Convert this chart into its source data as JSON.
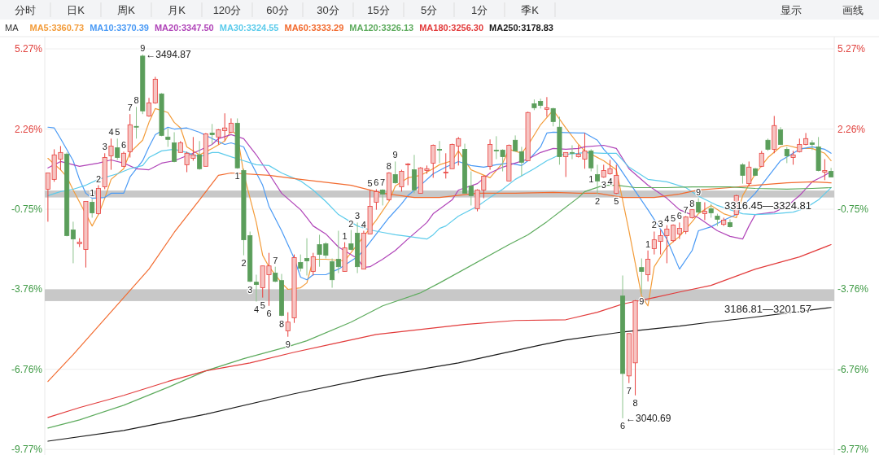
{
  "chart_data": {
    "type": "candlestick",
    "categories": [
      null,
      null,
      null,
      null,
      null,
      null,
      null,
      null,
      null,
      null,
      null,
      null,
      null,
      null,
      null,
      null,
      null,
      null,
      null,
      null,
      null,
      null,
      null,
      null,
      null,
      null,
      null,
      null,
      null,
      null,
      null,
      null,
      null,
      null,
      null,
      null,
      null,
      null,
      null,
      null,
      null,
      null,
      null,
      null,
      null,
      null,
      null,
      null,
      null,
      null,
      null,
      null,
      null,
      null,
      null,
      null,
      null,
      null,
      null,
      null,
      null,
      null,
      null,
      null,
      null,
      null,
      null,
      null,
      null,
      null,
      null,
      null,
      null,
      null,
      null,
      null,
      null,
      null,
      null,
      null,
      null,
      null,
      null,
      null,
      null,
      null,
      null,
      null,
      null,
      null,
      null,
      null,
      null,
      null,
      null,
      null,
      null,
      null,
      null,
      null,
      null,
      null,
      null,
      null,
      null,
      null,
      null,
      null,
      null,
      null,
      null,
      null,
      null,
      null,
      null,
      null,
      null,
      null,
      null,
      null,
      null,
      null,
      null,
      null,
      null
    ],
    "ohlc": [
      [
        0.0,
        0.61,
        -1.22,
        0.61
      ],
      [
        0.37,
        1.5,
        0.28,
        1.29
      ],
      [
        1.13,
        1.62,
        0.73,
        1.38
      ],
      [
        1.32,
        1.38,
        -1.77,
        -1.74
      ],
      [
        -1.53,
        -1.22,
        -2.78,
        -1.87
      ],
      [
        -2.05,
        -1.84,
        -2.17,
        -1.99
      ],
      [
        -2.26,
        -0.46,
        -2.94,
        -0.46
      ],
      [
        -0.49,
        -0.37,
        -1.07,
        -0.89
      ],
      [
        -0.92,
        0.15,
        -0.95,
        0.03
      ],
      [
        0.09,
        1.35,
        0.0,
        1.19
      ],
      [
        1.25,
        1.9,
        0.73,
        1.62
      ],
      [
        1.56,
        1.9,
        1.1,
        1.19
      ],
      [
        0.86,
        1.41,
        0.83,
        1.35
      ],
      [
        1.41,
        2.82,
        1.19,
        2.42
      ],
      [
        2.36,
        3.09,
        1.9,
        2.33
      ],
      [
        5.0,
        5.06,
        2.82,
        2.94
      ],
      [
        2.75,
        3.43,
        2.72,
        3.24
      ],
      [
        3.24,
        4.22,
        3.21,
        4.13
      ],
      [
        3.58,
        3.61,
        1.99,
        2.02
      ],
      [
        1.96,
        2.3,
        1.59,
        1.87
      ],
      [
        1.74,
        2.14,
        1.01,
        1.04
      ],
      [
        1.38,
        1.81,
        1.38,
        1.74
      ],
      [
        0.92,
        1.41,
        0.64,
        1.35
      ],
      [
        1.16,
        1.96,
        1.07,
        1.29
      ],
      [
        1.29,
        1.81,
        0.73,
        0.77
      ],
      [
        0.86,
        2.11,
        0.86,
        2.08
      ],
      [
        2.11,
        2.45,
        1.68,
        2.05
      ],
      [
        1.96,
        2.26,
        1.68,
        2.23
      ],
      [
        2.2,
        2.85,
        1.81,
        2.3
      ],
      [
        2.14,
        2.66,
        2.11,
        2.48
      ],
      [
        2.48,
        2.66,
        0.77,
        0.8
      ],
      [
        0.7,
        0.77,
        -2.48,
        -1.9
      ],
      [
        -1.74,
        -1.59,
        -3.49,
        -3.46
      ],
      [
        -3.49,
        -3.21,
        -4.22,
        -3.58
      ],
      [
        -3.7,
        -2.88,
        -4.07,
        -2.88
      ],
      [
        -3.21,
        -2.39,
        -4.38,
        -2.88
      ],
      [
        -3.15,
        -2.91,
        -3.49,
        -3.46
      ],
      [
        -3.43,
        -3.18,
        -4.77,
        -4.74
      ],
      [
        -5.32,
        -4.62,
        -5.54,
        -4.99
      ],
      [
        -4.83,
        -2.45,
        -5.02,
        -2.57
      ],
      [
        -2.75,
        -2.45,
        -3.09,
        -2.97
      ],
      [
        -2.6,
        -1.84,
        -3.24,
        -2.69
      ],
      [
        -3.09,
        -2.39,
        -3.24,
        -2.54
      ],
      [
        -2.08,
        -1.71,
        -2.91,
        -2.45
      ],
      [
        -2.05,
        -1.99,
        -2.6,
        -2.48
      ],
      [
        -2.72,
        -2.6,
        -3.7,
        -3.4
      ],
      [
        -2.63,
        -1.56,
        -3.15,
        -2.91
      ],
      [
        -3.09,
        -1.99,
        -3.09,
        -2.2
      ],
      [
        -2.05,
        -1.53,
        -2.3,
        -2.26
      ],
      [
        -1.65,
        -1.25,
        -3.15,
        -2.91
      ],
      [
        -3.0,
        -1.56,
        -3.0,
        -1.65
      ],
      [
        -1.68,
        -0.03,
        -1.68,
        -0.64
      ],
      [
        -0.49,
        0.0,
        -0.77,
        -0.09
      ],
      [
        -0.03,
        0.0,
        -0.61,
        -0.18
      ],
      [
        -0.4,
        0.64,
        -0.43,
        0.61
      ],
      [
        0.55,
        1.04,
        0.21,
        0.24
      ],
      [
        0.09,
        0.73,
        -0.09,
        0.67
      ],
      [
        0.92,
        0.98,
        0.15,
        0.95
      ],
      [
        0.73,
        1.29,
        -0.15,
        -0.03
      ],
      [
        -0.15,
        0.83,
        -0.15,
        0.8
      ],
      [
        0.7,
        0.89,
        0.58,
        0.77
      ],
      [
        0.98,
        1.68,
        0.43,
        1.65
      ],
      [
        1.5,
        1.81,
        0.98,
        1.47
      ],
      [
        0.61,
        1.35,
        0.4,
        0.64
      ],
      [
        0.77,
        1.71,
        0.77,
        1.68
      ],
      [
        1.62,
        1.96,
        0.89,
        1.9
      ],
      [
        1.5,
        1.71,
        -0.15,
        -0.15
      ],
      [
        0.12,
        0.67,
        -0.61,
        -0.24
      ],
      [
        -0.73,
        0.0,
        -0.83,
        -0.03
      ],
      [
        -0.03,
        0.52,
        -0.34,
        0.49
      ],
      [
        0.86,
        1.87,
        0.73,
        1.68
      ],
      [
        1.47,
        1.99,
        1.13,
        1.44
      ],
      [
        1.47,
        1.5,
        0.67,
        1.22
      ],
      [
        0.31,
        1.68,
        0.31,
        1.65
      ],
      [
        1.84,
        2.02,
        1.41,
        1.44
      ],
      [
        1.41,
        1.59,
        0.49,
        1.01
      ],
      [
        1.07,
        2.91,
        1.07,
        2.88
      ],
      [
        3.21,
        3.37,
        2.97,
        3.06
      ],
      [
        3.3,
        3.4,
        3.03,
        3.15
      ],
      [
        3.0,
        3.46,
        2.72,
        3.06
      ],
      [
        3.03,
        3.06,
        2.36,
        2.54
      ],
      [
        2.33,
        2.72,
        0.92,
        1.22
      ],
      [
        1.22,
        1.38,
        0.46,
        1.38
      ],
      [
        1.38,
        1.65,
        1.13,
        1.35
      ],
      [
        1.22,
        1.65,
        1.19,
        1.32
      ],
      [
        1.13,
        2.11,
        0.77,
        1.44
      ],
      [
        1.44,
        1.5,
        0.67,
        0.8
      ],
      [
        0.55,
        0.92,
        -0.18,
        0.31
      ],
      [
        0.46,
        0.92,
        0.43,
        0.7
      ],
      [
        0.58,
        1.1,
        0.55,
        0.77
      ],
      [
        -0.15,
        0.92,
        -0.18,
        0.52
      ],
      [
        -4.01,
        -3.24,
        -8.6,
        -6.92
      ],
      [
        -7.01,
        -5.42,
        -7.28,
        -5.42
      ],
      [
        -6.52,
        -4.16,
        -7.74,
        -4.19
      ],
      [
        -2.94,
        -2.6,
        -3.92,
        -3.09
      ],
      [
        -3.21,
        -2.3,
        -3.46,
        -2.63
      ],
      [
        -2.23,
        -1.59,
        -2.45,
        -1.9
      ],
      [
        -1.96,
        -1.53,
        -2.45,
        -1.74
      ],
      [
        -1.74,
        -1.35,
        -2.78,
        -1.5
      ],
      [
        -1.93,
        -1.32,
        -1.99,
        -1.35
      ],
      [
        -1.68,
        -1.25,
        -1.87,
        -1.47
      ],
      [
        -1.59,
        -1.01,
        -1.68,
        -1.04
      ],
      [
        -1.07,
        -0.77,
        -1.1,
        -0.77
      ],
      [
        -0.49,
        -0.34,
        -0.92,
        -0.86
      ],
      [
        -0.92,
        -0.49,
        -1.16,
        -0.83
      ],
      [
        -0.73,
        -0.55,
        -1.07,
        -0.89
      ],
      [
        -1.01,
        -0.92,
        -1.38,
        -1.13
      ],
      [
        -1.32,
        -1.07,
        -1.38,
        -1.16
      ],
      [
        -1.25,
        -1.13,
        -1.44,
        -1.41
      ],
      [
        -0.95,
        -0.21,
        -0.95,
        -0.24
      ],
      [
        0.92,
        0.98,
        0.21,
        0.52
      ],
      [
        0.21,
        1.04,
        0.12,
        0.83
      ],
      [
        0.77,
        0.8,
        0.49,
        0.52
      ],
      [
        0.86,
        1.44,
        0.83,
        1.35
      ],
      [
        1.84,
        1.9,
        1.44,
        1.5
      ],
      [
        1.5,
        2.75,
        1.35,
        2.39
      ],
      [
        2.23,
        2.33,
        1.68,
        1.68
      ],
      [
        1.5,
        1.59,
        0.98,
        1.25
      ],
      [
        1.19,
        1.44,
        0.92,
        1.29
      ],
      [
        1.41,
        1.9,
        1.38,
        1.68
      ],
      [
        1.68,
        2.11,
        1.65,
        1.9
      ],
      [
        1.74,
        1.84,
        1.47,
        1.68
      ],
      [
        1.59,
        1.96,
        0.67,
        0.7
      ],
      [
        0.64,
        1.13,
        0.34,
        0.7
      ],
      [
        0.67,
        0.8,
        0.46,
        0.46
      ]
    ],
    "value_labels": [
      null,
      null,
      null,
      null,
      null,
      null,
      null,
      "1",
      "2",
      "3",
      "4",
      "5",
      "6",
      "7",
      "8",
      "9",
      null,
      null,
      null,
      null,
      null,
      null,
      null,
      null,
      null,
      null,
      null,
      null,
      null,
      null,
      "1",
      "2",
      "3",
      "4",
      "5",
      "6",
      "7",
      "8",
      "9",
      null,
      null,
      null,
      null,
      null,
      null,
      null,
      null,
      "1",
      "2",
      "3",
      "4",
      "5",
      "6",
      "7",
      "8",
      "9",
      null,
      null,
      null,
      null,
      null,
      null,
      null,
      null,
      null,
      null,
      null,
      null,
      null,
      null,
      null,
      null,
      null,
      null,
      null,
      null,
      null,
      null,
      null,
      null,
      null,
      null,
      null,
      null,
      null,
      null,
      "1",
      "2",
      "3",
      "4",
      "5",
      "6",
      "7",
      "8",
      "9",
      "1",
      "2",
      "3",
      "4",
      "5",
      "6",
      "7",
      "8",
      "9",
      null,
      null,
      null,
      null,
      null,
      null,
      null,
      null,
      null,
      null,
      null,
      null,
      null,
      null,
      null,
      null,
      null,
      null,
      null,
      null,
      null
    ],
    "series": [
      {
        "type": "line",
        "name": "MA5:3360.73",
        "color": "#f39c3a",
        "values": [
          1.16,
          null,
          0.73,
          0.46,
          -0.03,
          null,
          null,
          -1.38,
          -0.95,
          -0.34,
          0.37,
          null,
          0.77,
          1.38,
          null,
          1.84,
          2.51,
          3.03,
          null,
          2.88,
          2.51,
          2.3,
          1.59,
          null,
          1.29,
          null,
          1.53,
          null,
          1.81,
          2.2,
          2.05,
          0.58,
          null,
          -1.25,
          -2.48,
          -2.91,
          null,
          -3.52,
          -3.76,
          null,
          -3.7,
          -3.52,
          -2.63,
          null,
          -2.63,
          null,
          null,
          -2.69,
          null,
          null,
          null,
          null,
          -1.16,
          null,
          -0.46,
          0.12,
          null,
          0.43,
          null,
          0.52,
          null,
          0.77,
          0.92,
          null,
          1.07,
          1.44,
          null,
          0.73,
          null,
          null,
          0.43,
          null,
          0.98,
          1.5,
          null,
          1.35,
          1.65,
          null,
          2.42,
          null,
          2.97,
          null,
          2.3,
          null,
          1.68,
          1.44,
          null,
          null,
          1.07,
          null,
          0.73,
          null,
          -1.56,
          null,
          -4.01,
          -4.38,
          -2.91,
          null,
          -2.17,
          null,
          -1.77,
          null,
          -1.22,
          -0.92,
          null,
          -0.61,
          null,
          -0.92,
          null,
          -1.07,
          -0.24,
          null,
          0.58,
          null,
          1.19,
          null,
          1.59,
          1.65,
          null,
          1.53,
          null,
          1.53,
          null,
          1.35,
          1.07
        ]
      },
      {
        "type": "line",
        "name": "MA10:3370.39",
        "color": "#4a9af5",
        "values": [
          2.33,
          2.3,
          1.9,
          null,
          1.07,
          0.37,
          -0.15,
          -0.34,
          null,
          -0.31,
          -0.15,
          null,
          -0.15,
          0.46,
          null,
          1.07,
          1.59,
          2.05,
          null,
          2.33,
          2.26,
          null,
          2.3,
          null,
          2.14,
          null,
          1.9,
          null,
          1.68,
          1.74,
          null,
          1.59,
          1.07,
          null,
          0.15,
          -0.64,
          null,
          -1.56,
          null,
          -2.6,
          -3.3,
          -3.4,
          -3.21,
          null,
          -3.21,
          null,
          -3.0,
          null,
          null,
          -2.54,
          -2.3,
          null,
          -1.68,
          null,
          -1.07,
          null,
          -0.55,
          -0.24,
          null,
          0.15,
          null,
          0.58,
          null,
          0.83,
          null,
          1.04,
          null,
          0.89,
          null,
          0.83,
          null,
          0.92,
          null,
          0.98,
          null,
          0.89,
          1.07,
          null,
          1.59,
          2.11,
          2.14,
          null,
          null,
          null,
          2.11,
          2.11,
          null,
          1.84,
          1.5,
          null,
          0.98,
          null,
          0.28,
          null,
          null,
          -0.77,
          null,
          null,
          -1.87,
          null,
          -3.0,
          null,
          -2.3,
          -1.56,
          null,
          -1.41,
          null,
          -1.16,
          null,
          -0.95,
          -0.64,
          null,
          -0.15,
          null,
          0.46,
          null,
          1.07,
          null,
          1.35,
          1.5,
          null,
          1.59,
          null,
          1.5,
          1.35
        ]
      },
      {
        "type": "line",
        "name": "MA20:3347.50",
        "color": "#b044b8",
        "values": [
          0.8,
          null,
          1.04,
          null,
          null,
          0.86,
          null,
          null,
          0.98,
          null,
          1.1,
          null,
          0.98,
          null,
          0.77,
          null,
          0.73,
          null,
          0.98,
          null,
          1.07,
          null,
          null,
          1.35,
          null,
          null,
          1.68,
          1.9,
          null,
          2.05,
          null,
          1.9,
          null,
          1.29,
          null,
          0.58,
          null,
          -0.15,
          null,
          null,
          -0.77,
          -1.07,
          -1.38,
          null,
          -1.68,
          null,
          -2.17,
          null,
          null,
          -2.6,
          -2.94,
          -2.91,
          null,
          -2.63,
          null,
          -2.3,
          null,
          -1.87,
          null,
          null,
          -1.25,
          -0.92,
          null,
          null,
          -0.4,
          -0.03,
          null,
          null,
          0.21,
          null,
          0.61,
          null,
          0.83,
          null,
          0.98,
          null,
          1.13,
          null,
          1.38,
          null,
          1.53,
          null,
          1.5,
          null,
          1.53,
          1.59,
          null,
          null,
          1.65,
          null,
          1.53,
          null,
          0.77,
          null,
          null,
          0.15,
          null,
          null,
          -0.34,
          null,
          -0.77,
          null,
          null,
          -1.07,
          null,
          null,
          -1.56,
          null,
          -1.77,
          null,
          -1.87,
          -1.38,
          -0.95,
          null,
          null,
          -0.86,
          null,
          -0.64,
          null,
          -0.24,
          null,
          0.28,
          null,
          0.52,
          0.67
        ]
      },
      {
        "type": "line",
        "name": "MA30:3324.55",
        "color": "#5ccbeb",
        "values": [
          -0.24,
          null,
          -0.09,
          null,
          0.0,
          null,
          0.15,
          null,
          0.37,
          null,
          null,
          0.58,
          null,
          0.77,
          null,
          0.89,
          1.19,
          null,
          1.44,
          null,
          1.5,
          null,
          1.38,
          null,
          1.22,
          null,
          1.38,
          1.38,
          null,
          1.22,
          null,
          1.07,
          null,
          0.92,
          null,
          0.89,
          null,
          0.61,
          null,
          null,
          0.31,
          null,
          -0.03,
          null,
          -0.46,
          null,
          -0.95,
          null,
          null,
          -1.38,
          null,
          -1.53,
          null,
          -1.62,
          null,
          -1.71,
          null,
          -1.77,
          null,
          null,
          -1.87,
          -1.71,
          -1.47,
          -1.38,
          null,
          -1.01,
          null,
          null,
          -0.64,
          null,
          -0.31,
          null,
          0.0,
          null,
          0.37,
          null,
          null,
          0.77,
          null,
          1.07,
          null,
          1.29,
          null,
          null,
          1.35,
          1.38,
          null,
          null,
          1.35,
          null,
          1.35,
          null,
          0.83,
          null,
          null,
          0.37,
          null,
          null,
          0.28,
          null,
          null,
          0.06,
          null,
          -0.26,
          null,
          null,
          -0.61,
          null,
          -0.77,
          null,
          -0.92,
          null,
          -0.95,
          null,
          null,
          -0.92,
          null,
          null,
          -0.86,
          null,
          -0.7,
          null,
          -0.4,
          null,
          0.06
        ]
      },
      {
        "type": "line",
        "name": "MA60:3333.29",
        "color": "#f26b2f",
        "values": [
          -7.22,
          null,
          null,
          null,
          -6.21,
          null,
          null,
          null,
          -5.14,
          null,
          null,
          null,
          -4.07,
          null,
          null,
          null,
          -3.0,
          null,
          null,
          null,
          -1.62,
          null,
          null,
          null,
          -0.4,
          null,
          null,
          0.52,
          null,
          0.61,
          null,
          null,
          null,
          null,
          null,
          0.52,
          null,
          null,
          null,
          null,
          0.37,
          null,
          null,
          null,
          null,
          null,
          null,
          null,
          0.15,
          null,
          null,
          null,
          null,
          -0.15,
          null,
          null,
          null,
          null,
          -0.31,
          null,
          null,
          null,
          -0.31,
          null,
          null,
          null,
          null,
          null,
          -0.15,
          null,
          null,
          null,
          null,
          null,
          -0.15,
          null,
          null,
          null,
          null,
          null,
          -0.12,
          null,
          null,
          null,
          -0.15,
          null,
          null,
          -0.15,
          null,
          null,
          null,
          -0.31,
          null,
          null,
          null,
          null,
          -0.31,
          null,
          null,
          null,
          -0.18,
          null,
          null,
          -0.03,
          null,
          null,
          null,
          null,
          0.06,
          null,
          null,
          null,
          0.15,
          null,
          null,
          null,
          null,
          0.24,
          null,
          null,
          null,
          0.28,
          null,
          null,
          0.24
        ]
      },
      {
        "type": "line",
        "name": "MA120:3326.13",
        "color": "#5dab5d",
        "values": [
          -8.97,
          null,
          null,
          null,
          null,
          -8.66,
          null,
          null,
          null,
          null,
          null,
          null,
          -8.11,
          null,
          null,
          null,
          null,
          null,
          null,
          -7.44,
          null,
          null,
          null,
          null,
          null,
          -6.82,
          null,
          null,
          null,
          null,
          null,
          -6.36,
          null,
          null,
          null,
          null,
          null,
          null,
          -5.91,
          null,
          null,
          -5.69,
          null,
          null,
          null,
          null,
          null,
          null,
          -4.99,
          null,
          null,
          null,
          null,
          -4.38,
          null,
          null,
          null,
          null,
          null,
          -3.89,
          null,
          null,
          -3.52,
          null,
          null,
          null,
          null,
          null,
          null,
          null,
          null,
          null,
          null,
          -2.08,
          null,
          null,
          -1.71,
          null,
          null,
          -1.22,
          null,
          null,
          null,
          null,
          -0.31,
          -0.09,
          null,
          null,
          0.15,
          null,
          0.15,
          null,
          null,
          0.06,
          null,
          null,
          null,
          null,
          0.06,
          null,
          null,
          null,
          0.09,
          null,
          null,
          null,
          null,
          null,
          0.09,
          null,
          null,
          null,
          0.03,
          null,
          null,
          null,
          null,
          0.0,
          null,
          null,
          null,
          0.03,
          null,
          null,
          0.06
        ]
      },
      {
        "type": "line",
        "name": "MA180:3256.30",
        "color": "#e23b3b",
        "values": [
          -8.57,
          null,
          null,
          null,
          null,
          -8.2,
          null,
          null,
          null,
          null,
          null,
          null,
          -7.74,
          null,
          null,
          null,
          null,
          null,
          null,
          -7.22,
          null,
          null,
          null,
          null,
          null,
          -6.82,
          null,
          null,
          null,
          null,
          null,
          null,
          -6.52,
          null,
          null,
          null,
          null,
          null,
          null,
          -6.12,
          null,
          null,
          null,
          null,
          null,
          -5.81,
          null,
          null,
          null,
          null,
          null,
          null,
          -5.45,
          null,
          null,
          null,
          null,
          null,
          -5.29,
          null,
          null,
          null,
          null,
          null,
          null,
          null,
          -5.08,
          null,
          null,
          null,
          null,
          null,
          null,
          null,
          -4.93,
          null,
          null,
          null,
          null,
          null,
          null,
          null,
          -4.9,
          null,
          null,
          null,
          null,
          -4.62,
          null,
          null,
          null,
          -4.31,
          null,
          null,
          null,
          null,
          -4.07,
          null,
          null,
          null,
          -3.86,
          null,
          null,
          null,
          null,
          -3.61,
          null,
          null,
          null,
          null,
          null,
          null,
          -3.0,
          null,
          null,
          null,
          null,
          null,
          null,
          -2.54,
          null,
          null,
          null,
          null,
          -2.08
        ]
      },
      {
        "type": "line",
        "name": "MA250:3178.83",
        "color": "#1a1a1a",
        "values": [
          -9.46,
          null,
          null,
          null,
          null,
          null,
          null,
          null,
          null,
          null,
          null,
          null,
          -9.06,
          null,
          null,
          null,
          null,
          null,
          null,
          null,
          null,
          null,
          null,
          null,
          null,
          -8.45,
          null,
          null,
          null,
          null,
          null,
          null,
          null,
          null,
          null,
          null,
          null,
          null,
          null,
          -7.68,
          null,
          null,
          null,
          null,
          null,
          null,
          null,
          null,
          null,
          null,
          null,
          null,
          -7.04,
          null,
          null,
          null,
          null,
          null,
          null,
          null,
          null,
          null,
          null,
          null,
          null,
          -6.52,
          null,
          null,
          null,
          null,
          null,
          null,
          null,
          null,
          null,
          null,
          null,
          null,
          -5.85,
          null,
          null,
          null,
          -5.66,
          null,
          null,
          null,
          null,
          null,
          null,
          null,
          null,
          -5.36,
          null,
          null,
          null,
          null,
          null,
          null,
          null,
          null,
          -5.14,
          null,
          null,
          null,
          null,
          -4.99,
          null,
          null,
          null,
          null,
          null,
          -4.83,
          null,
          null,
          null,
          null,
          null,
          null,
          -4.62,
          null,
          null,
          null,
          null,
          null,
          -4.44
        ]
      }
    ],
    "ylim": [
      -9.98,
      5.73
    ],
    "yticks": [
      {
        "value": 5.27,
        "label": "5.27%"
      },
      {
        "value": 2.26,
        "label": "2.26%"
      },
      {
        "value": -0.75,
        "label": "-0.75%"
      },
      {
        "value": -3.76,
        "label": "-3.76%"
      },
      {
        "value": -6.76,
        "label": "-6.76%"
      },
      {
        "value": -9.77,
        "label": "-9.77%"
      }
    ],
    "y2lim": [
      -9.98,
      5.73
    ],
    "y2ticks": [
      {
        "value": 5.27,
        "label": "5.27%"
      },
      {
        "value": 2.26,
        "label": "2.26%"
      },
      {
        "value": -0.75,
        "label": "-0.75%"
      },
      {
        "value": -3.76,
        "label": "-3.76%"
      },
      {
        "value": -6.76,
        "label": "-6.76%"
      },
      {
        "value": -9.77,
        "label": "-9.77%"
      }
    ],
    "grid": "y",
    "legend": "top left",
    "legend_title": "MA",
    "bands": [
      {
        "axis": "y",
        "from": -4.2,
        "to": -3.76,
        "color": "#c8c8c8",
        "label": "3186.81—3201.57"
      },
      {
        "axis": "y",
        "from": -0.31,
        "to": -0.05,
        "color": "#c8c8c8",
        "label": "3316.45—3324.81"
      }
    ],
    "annotations": [
      "←3494.87",
      "←3040.69",
      "分时",
      "日K",
      "周K",
      "月K",
      "120分",
      "60分",
      "30分",
      "15分",
      "5分",
      "1分",
      "季K",
      "显示",
      "画线"
    ]
  }
}
